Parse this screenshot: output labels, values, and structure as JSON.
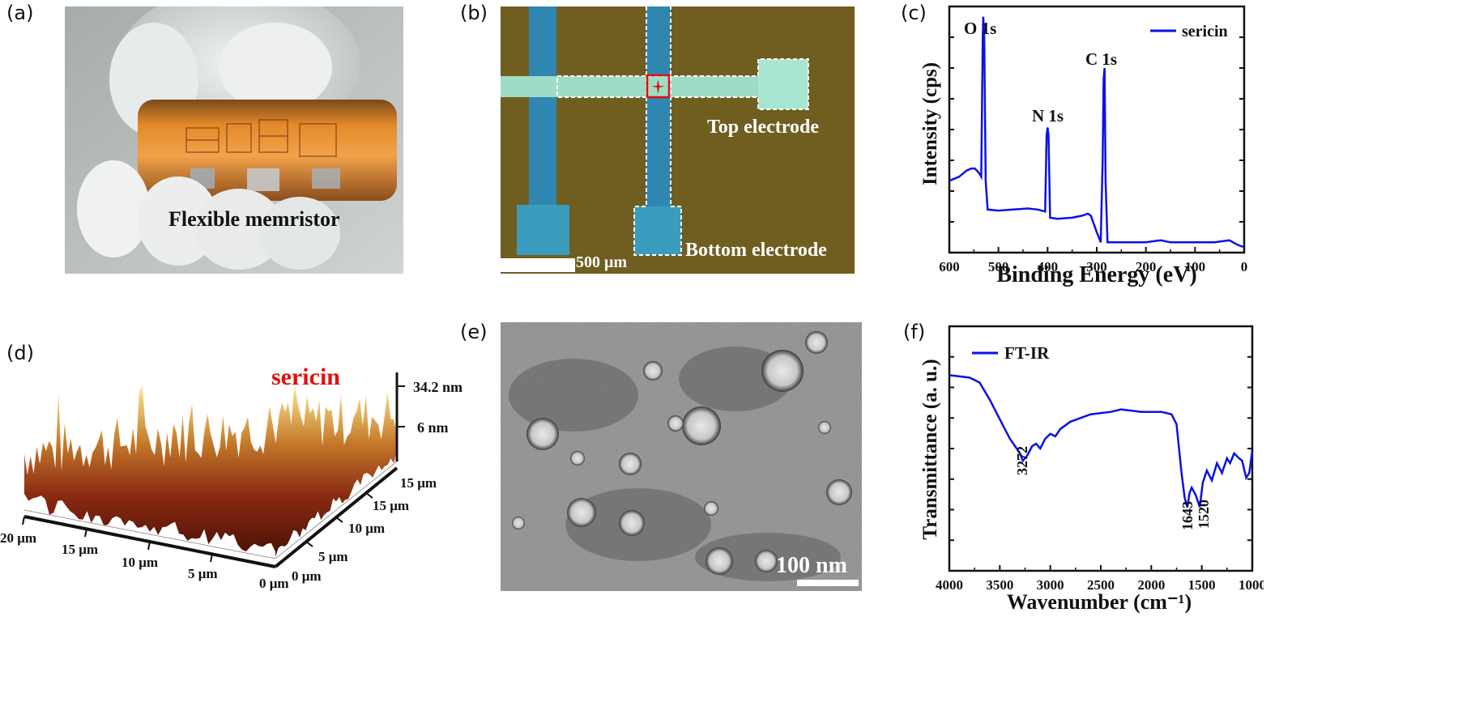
{
  "panels": {
    "a": {
      "letter": "(a)",
      "label": "Flexible memristor"
    },
    "b": {
      "letter": "(b)",
      "top_label": "Top electrode",
      "bottom_label": "Bottom electrode",
      "scale": "500 μm"
    },
    "c": {
      "letter": "(c)",
      "peaks": [
        "O 1s",
        "N 1s",
        "C 1s"
      ]
    },
    "d": {
      "letter": "(d)",
      "title": "sericin",
      "z_ticks": [
        "34.2 nm",
        "6 nm"
      ],
      "x_ticks": [
        "20 μm",
        "15 μm",
        "10 μm",
        "5 μm",
        "0 μm"
      ],
      "y_ticks": [
        "0 μm",
        "5 μm",
        "10 μm",
        "15 μm",
        "15 μm"
      ]
    },
    "e": {
      "letter": "(e)",
      "scale": "100 nm"
    },
    "f": {
      "letter": "(f)",
      "peak_labels": [
        "3272",
        "1643",
        "1520"
      ]
    }
  },
  "chart_data": [
    {
      "type": "line",
      "xlabel": "Binding Energy (eV)",
      "ylabel": "Intensity (cps)",
      "xlim": [
        600,
        0
      ],
      "x_ticks": [
        "600",
        "500",
        "400",
        "300",
        "200",
        "100",
        "0"
      ],
      "series": [
        {
          "name": "sericin",
          "color": "#0a12e6",
          "x": [
            600,
            580,
            565,
            555,
            548,
            540,
            535,
            532,
            531,
            529,
            526,
            522,
            500,
            470,
            440,
            420,
            405,
            402,
            400,
            398,
            395,
            380,
            350,
            330,
            318,
            312,
            300,
            292,
            288,
            286,
            284,
            282,
            278,
            250,
            200,
            170,
            150,
            100,
            60,
            30,
            15,
            5,
            0
          ],
          "y": [
            0.2,
            0.22,
            0.25,
            0.26,
            0.26,
            0.24,
            0.22,
            0.9,
            1.0,
            0.9,
            0.2,
            0.06,
            0.055,
            0.06,
            0.065,
            0.06,
            0.05,
            0.42,
            0.46,
            0.42,
            0.02,
            0.015,
            0.02,
            0.03,
            0.04,
            0.03,
            -0.05,
            -0.1,
            0.3,
            0.7,
            0.75,
            0.2,
            -0.1,
            -0.1,
            -0.1,
            -0.09,
            -0.1,
            -0.1,
            -0.1,
            -0.09,
            -0.11,
            -0.12,
            -0.12
          ]
        }
      ]
    },
    {
      "type": "line",
      "xlabel": "Wavenumber (cm⁻¹)",
      "ylabel": "Transmittance (a. u.)",
      "xlim": [
        4000,
        1000
      ],
      "x_ticks": [
        "4000",
        "3500",
        "3000",
        "2500",
        "2000",
        "1500",
        "1000"
      ],
      "series": [
        {
          "name": "FT-IR",
          "color": "#0a12e6",
          "x": [
            4000,
            3800,
            3700,
            3600,
            3500,
            3400,
            3300,
            3272,
            3230,
            3180,
            3140,
            3100,
            3050,
            3000,
            2950,
            2900,
            2800,
            2600,
            2400,
            2300,
            2100,
            1900,
            1800,
            1750,
            1700,
            1670,
            1643,
            1620,
            1600,
            1560,
            1520,
            1490,
            1450,
            1400,
            1350,
            1300,
            1250,
            1220,
            1180,
            1130,
            1100,
            1060,
            1030,
            1000
          ],
          "y": [
            0.8,
            0.79,
            0.77,
            0.7,
            0.62,
            0.54,
            0.48,
            0.45,
            0.47,
            0.51,
            0.52,
            0.5,
            0.54,
            0.56,
            0.55,
            0.58,
            0.61,
            0.64,
            0.65,
            0.66,
            0.65,
            0.65,
            0.64,
            0.6,
            0.4,
            0.3,
            0.26,
            0.32,
            0.34,
            0.31,
            0.26,
            0.36,
            0.41,
            0.37,
            0.44,
            0.4,
            0.46,
            0.44,
            0.48,
            0.46,
            0.45,
            0.38,
            0.4,
            0.49
          ]
        }
      ]
    }
  ]
}
